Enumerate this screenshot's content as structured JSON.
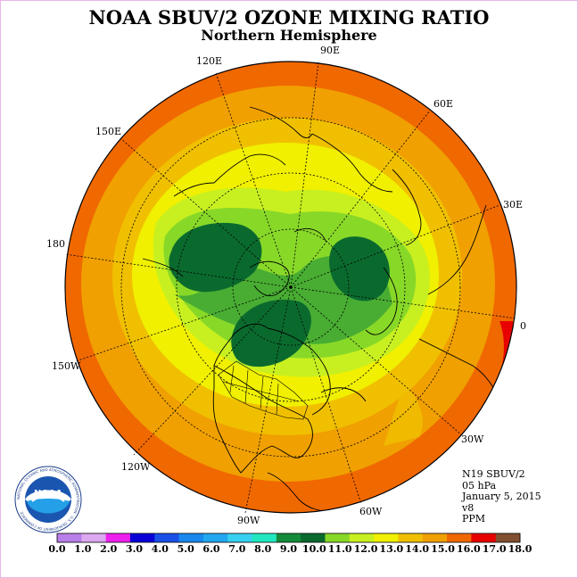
{
  "title": "NOAA SBUV/2 OZONE MIXING RATIO",
  "subtitle": "Northern Hemisphere",
  "longitude_labels": [
    "90E",
    "60E",
    "30E",
    "0",
    "30W",
    "60W",
    "90W",
    "120W",
    "150W",
    "180",
    "150E",
    "120E"
  ],
  "info": {
    "line1": "N19 SBUV/2",
    "line2": "05 hPa",
    "line3": "January 5, 2015",
    "line4": "v8",
    "line5": "PPM"
  },
  "logo": {
    "text": "NOAA",
    "ring_text": "NATIONAL OCEANIC AND ATMOSPHERIC ADMINISTRATION · U.S. DEPARTMENT OF COMMERCE"
  },
  "colorbar": {
    "labels": [
      "0.0",
      "1.0",
      "2.0",
      "3.0",
      "4.0",
      "5.0",
      "6.0",
      "7.0",
      "8.0",
      "9.0",
      "10.0",
      "11.0",
      "12.0",
      "13.0",
      "14.0",
      "15.0",
      "16.0",
      "17.0",
      "18.0"
    ],
    "colors": [
      "#b77ee8",
      "#dca8f0",
      "#ee20ee",
      "#0a00d8",
      "#1a50e6",
      "#1888ee",
      "#22a8f0",
      "#36d0f0",
      "#22e8c0",
      "#148a3a",
      "#0a6a2e",
      "#88d828",
      "#c8f020",
      "#f0f000",
      "#f0c000",
      "#f0a000",
      "#f06800",
      "#e80000",
      "#805030"
    ]
  }
}
